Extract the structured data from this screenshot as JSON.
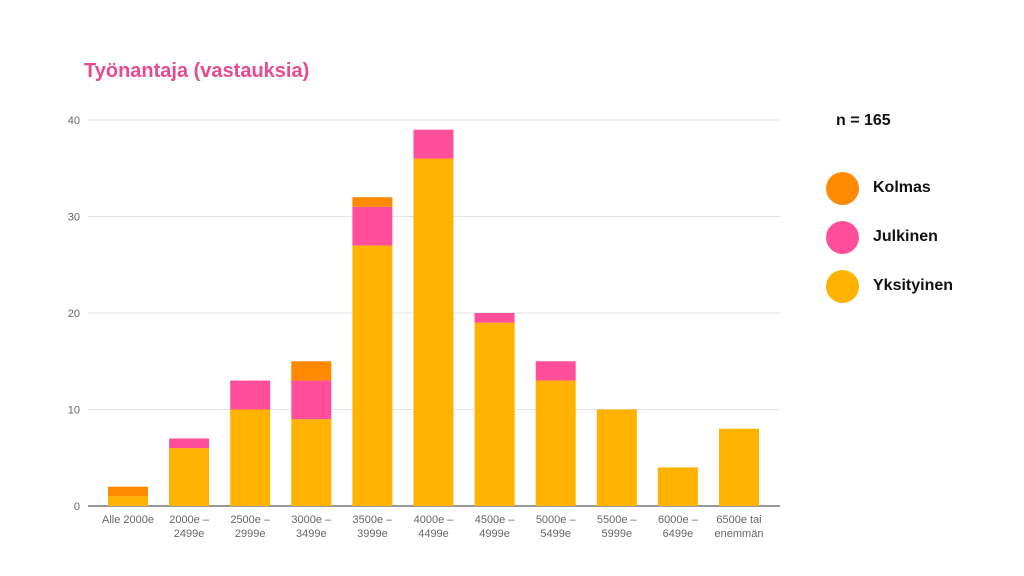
{
  "chart_data": {
    "type": "bar",
    "stacked": true,
    "title": "Työnantaja (vastauksia)",
    "xlabel": "",
    "ylabel": "",
    "ylim": [
      0,
      40
    ],
    "yticks": [
      0,
      10,
      20,
      30,
      40
    ],
    "grid": true,
    "legend_position": "right",
    "note": "n = 165",
    "categories": [
      "Alle 2000e",
      "2000e –\n2499e",
      "2500e –\n2999e",
      "3000e –\n3499e",
      "3500e –\n3999e",
      "4000e –\n4499e",
      "4500e –\n4999e",
      "5000e –\n5499e",
      "5500e –\n5999e",
      "6000e –\n6499e",
      "6500e tai\nenemmän"
    ],
    "series": [
      {
        "name": "Yksityinen",
        "color": "#ffb300",
        "values": [
          1,
          6,
          10,
          9,
          27,
          36,
          19,
          13,
          10,
          4,
          8
        ]
      },
      {
        "name": "Julkinen",
        "color": "#ff4f9a",
        "values": [
          0,
          1,
          3,
          4,
          4,
          3,
          1,
          2,
          0,
          0,
          0
        ]
      },
      {
        "name": "Kolmas",
        "color": "#ff8a00",
        "values": [
          1,
          0,
          0,
          2,
          1,
          0,
          0,
          0,
          0,
          0,
          0
        ]
      }
    ],
    "legend_order": [
      "Kolmas",
      "Julkinen",
      "Yksityinen"
    ]
  }
}
